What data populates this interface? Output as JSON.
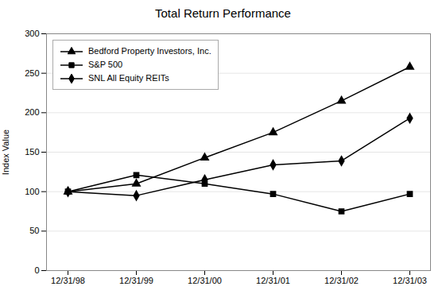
{
  "chart_data": {
    "type": "line",
    "title": "Total Return Performance",
    "ylabel": "Index Value",
    "categories": [
      "12/31/98",
      "12/31/99",
      "12/31/00",
      "12/31/01",
      "12/31/02",
      "12/31/03"
    ],
    "series": [
      {
        "name": "Bedford Property Investors, Inc.",
        "color": "#000000",
        "marker": "triangle",
        "values": [
          100,
          110,
          143,
          175,
          215,
          258
        ]
      },
      {
        "name": "S&P 500",
        "color": "#000000",
        "marker": "square",
        "values": [
          100,
          121,
          110,
          97,
          75,
          97
        ]
      },
      {
        "name": "SNL All Equity REITs",
        "color": "#000000",
        "marker": "diamond",
        "values": [
          100,
          95,
          115,
          134,
          139,
          193
        ]
      }
    ],
    "ylim": [
      0,
      300
    ],
    "yticks": [
      0,
      50,
      100,
      150,
      200,
      250,
      300
    ],
    "grid": true,
    "legend": "upper left"
  }
}
